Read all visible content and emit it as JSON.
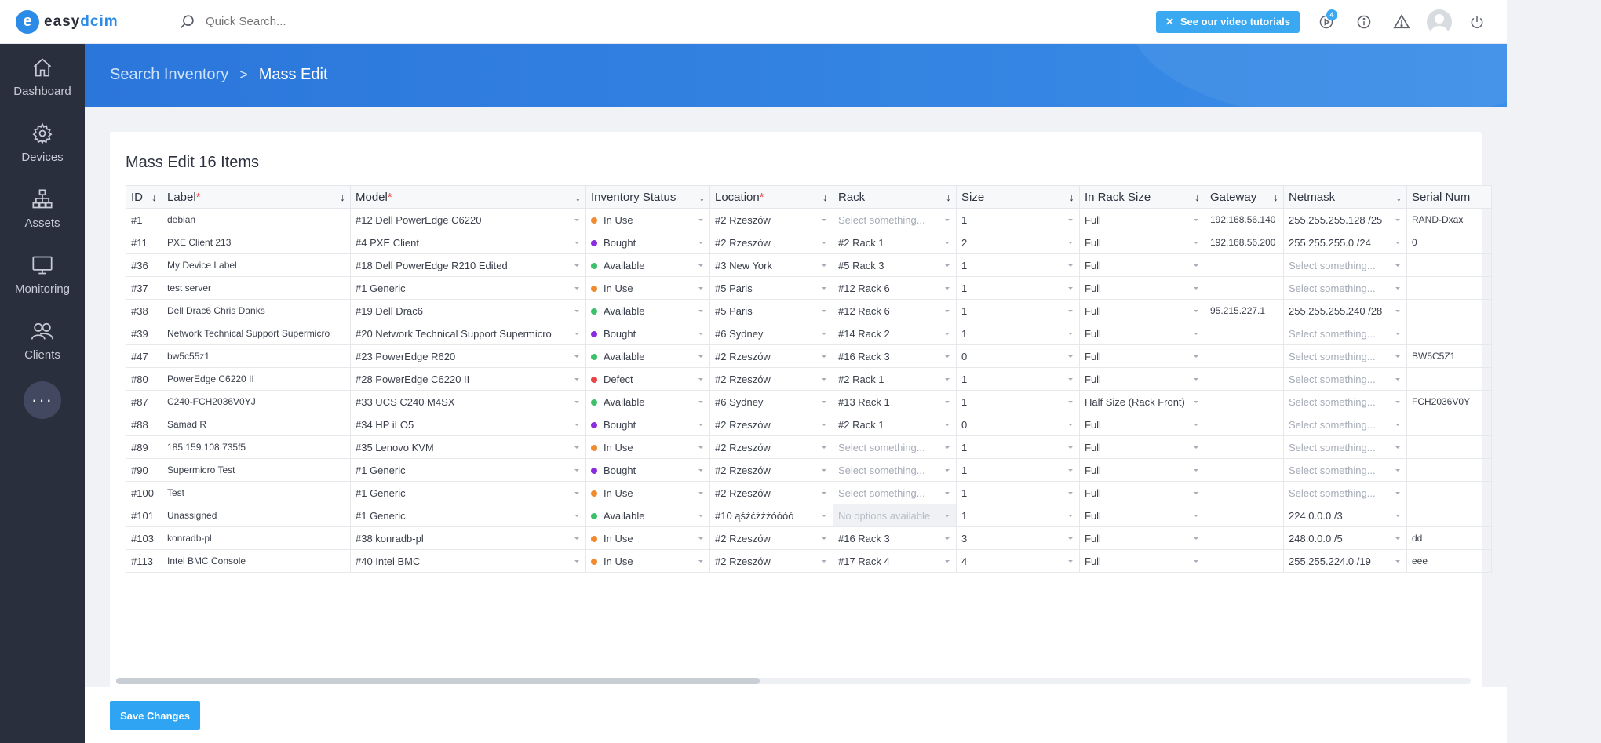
{
  "brand": {
    "mark": "e",
    "name_a": "easy",
    "name_b": "dcim"
  },
  "search": {
    "placeholder": "Quick Search..."
  },
  "topbar": {
    "tutorials_label": "See our video tutorials",
    "notifications_count": "4"
  },
  "sidebar": {
    "items": [
      {
        "label": "Dashboard",
        "icon": "home-icon"
      },
      {
        "label": "Devices",
        "icon": "gear-icon"
      },
      {
        "label": "Assets",
        "icon": "sitemap-icon"
      },
      {
        "label": "Monitoring",
        "icon": "monitor-icon"
      },
      {
        "label": "Clients",
        "icon": "users-icon"
      }
    ],
    "more": "···"
  },
  "breadcrumb": {
    "parent": "Search Inventory",
    "separator": ">",
    "current": "Mass Edit"
  },
  "page": {
    "title": "Mass Edit 16 Items"
  },
  "table": {
    "columns": [
      {
        "label": "ID",
        "required": false
      },
      {
        "label": "Label",
        "required": true
      },
      {
        "label": "Model",
        "required": true
      },
      {
        "label": "Inventory Status",
        "required": false
      },
      {
        "label": "Location",
        "required": true
      },
      {
        "label": "Rack",
        "required": false
      },
      {
        "label": "Size",
        "required": false
      },
      {
        "label": "In Rack Size",
        "required": false
      },
      {
        "label": "Gateway",
        "required": false
      },
      {
        "label": "Netmask",
        "required": false
      },
      {
        "label": "Serial Num",
        "required": false
      }
    ],
    "status_colors": {
      "In Use": "#f28a2e",
      "Bought": "#8b2ce0",
      "Available": "#3cc06a",
      "Defect": "#e84545"
    },
    "rows": [
      {
        "id": "#1",
        "label": "debian",
        "model": "#12 Dell PowerEdge C6220",
        "status": "In Use",
        "location": "#2 Rzeszów",
        "rack": "",
        "size": "1",
        "in_rack": "Full",
        "gateway": "192.168.56.140",
        "netmask": "255.255.255.128 /25",
        "serial": "RAND-Dxax"
      },
      {
        "id": "#11",
        "label": "PXE Client 213",
        "model": "#4 PXE Client",
        "status": "Bought",
        "location": "#2 Rzeszów",
        "rack": "#2 Rack 1",
        "size": "2",
        "in_rack": "Full",
        "gateway": "192.168.56.200",
        "netmask": "255.255.255.0 /24",
        "serial": "0"
      },
      {
        "id": "#36",
        "label": "My Device Label",
        "model": "#18 Dell PowerEdge R210 Edited",
        "status": "Available",
        "location": "#3 New York",
        "rack": "#5 Rack 3",
        "size": "1",
        "in_rack": "Full",
        "gateway": "",
        "netmask": "",
        "serial": ""
      },
      {
        "id": "#37",
        "label": "test server",
        "model": "#1 Generic",
        "status": "In Use",
        "location": "#5 Paris",
        "rack": "#12 Rack 6",
        "size": "1",
        "in_rack": "Full",
        "gateway": "",
        "netmask": "",
        "serial": ""
      },
      {
        "id": "#38",
        "label": "Dell Drac6 Chris Danks",
        "model": "#19 Dell Drac6",
        "status": "Available",
        "location": "#5 Paris",
        "rack": "#12 Rack 6",
        "size": "1",
        "in_rack": "Full",
        "gateway": "95.215.227.1",
        "netmask": "255.255.255.240 /28",
        "serial": ""
      },
      {
        "id": "#39",
        "label": "Network Technical Support Supermicro",
        "model": "#20 Network Technical Support Supermicro",
        "status": "Bought",
        "location": "#6 Sydney",
        "rack": "#14 Rack 2",
        "size": "1",
        "in_rack": "Full",
        "gateway": "",
        "netmask": "",
        "serial": ""
      },
      {
        "id": "#47",
        "label": "bw5c55z1",
        "model": "#23 PowerEdge R620",
        "status": "Available",
        "location": "#2 Rzeszów",
        "rack": "#16 Rack 3",
        "size": "0",
        "in_rack": "Full",
        "gateway": "",
        "netmask": "",
        "serial": "BW5C5Z1"
      },
      {
        "id": "#80",
        "label": "PowerEdge C6220 II",
        "model": "#28 PowerEdge C6220 II",
        "status": "Defect",
        "location": "#2 Rzeszów",
        "rack": "#2 Rack 1",
        "size": "1",
        "in_rack": "Full",
        "gateway": "",
        "netmask": "",
        "serial": ""
      },
      {
        "id": "#87",
        "label": "C240-FCH2036V0YJ",
        "model": "#33 UCS C240 M4SX",
        "status": "Available",
        "location": "#6 Sydney",
        "rack": "#13 Rack 1",
        "size": "1",
        "in_rack": "Half Size (Rack Front)",
        "gateway": "",
        "netmask": "",
        "serial": "FCH2036V0Y"
      },
      {
        "id": "#88",
        "label": "Samad R",
        "model": "#34 HP iLO5",
        "status": "Bought",
        "location": "#2 Rzeszów",
        "rack": "#2 Rack 1",
        "size": "0",
        "in_rack": "Full",
        "gateway": "",
        "netmask": "",
        "serial": ""
      },
      {
        "id": "#89",
        "label": "185.159.108.735f5",
        "model": "#35 Lenovo KVM",
        "status": "In Use",
        "location": "#2 Rzeszów",
        "rack": "",
        "size": "1",
        "in_rack": "Full",
        "gateway": "",
        "netmask": "",
        "serial": ""
      },
      {
        "id": "#90",
        "label": "Supermicro Test",
        "model": "#1 Generic",
        "status": "Bought",
        "location": "#2 Rzeszów",
        "rack": "",
        "size": "1",
        "in_rack": "Full",
        "gateway": "",
        "netmask": "",
        "serial": ""
      },
      {
        "id": "#100",
        "label": "Test",
        "model": "#1 Generic",
        "status": "In Use",
        "location": "#2 Rzeszów",
        "rack": "",
        "size": "1",
        "in_rack": "Full",
        "gateway": "",
        "netmask": "",
        "serial": ""
      },
      {
        "id": "#101",
        "label": "Unassigned",
        "model": "#1 Generic",
        "status": "Available",
        "location": "#10 ąśźćżźżóóóó",
        "rack": "",
        "rack_disabled": true,
        "size": "1",
        "in_rack": "Full",
        "gateway": "",
        "netmask": "224.0.0.0 /3",
        "serial": ""
      },
      {
        "id": "#103",
        "label": "konradb-pl",
        "model": "#38 konradb-pl",
        "status": "In Use",
        "location": "#2 Rzeszów",
        "rack": "#16 Rack 3",
        "size": "3",
        "in_rack": "Full",
        "gateway": "",
        "netmask": "248.0.0.0 /5",
        "serial": "dd"
      },
      {
        "id": "#113",
        "label": "Intel BMC Console",
        "model": "#40 Intel BMC",
        "status": "In Use",
        "location": "#2 Rzeszów",
        "rack": "#17 Rack 4",
        "size": "4",
        "in_rack": "Full",
        "gateway": "",
        "netmask": "255.255.224.0 /19",
        "serial": "eee"
      }
    ],
    "placeholders": {
      "select": "Select something...",
      "no_options": "No options available"
    }
  },
  "footer": {
    "save_label": "Save Changes"
  }
}
